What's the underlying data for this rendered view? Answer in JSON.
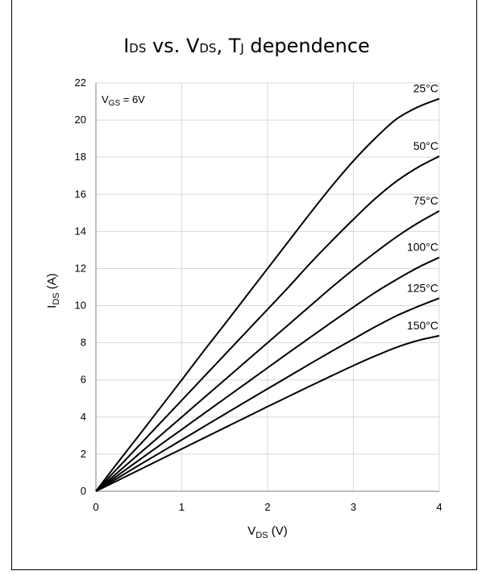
{
  "chart_data": {
    "type": "line",
    "title": {
      "i": "I",
      "sub_ds": "DS",
      "mid": " vs. V",
      "sub_ds2": "DS",
      "comma": ", T",
      "sub_j": "J",
      "rest": " dependence"
    },
    "xlabel": {
      "v": "V",
      "sub": "DS",
      "unit": " (V)"
    },
    "ylabel": {
      "i": "I",
      "sub": "DS",
      "unit": " (A)"
    },
    "condition": {
      "v": "V",
      "sub": "GS",
      "rest": " = 6V"
    },
    "xlim": [
      0,
      4
    ],
    "ylim": [
      0,
      22
    ],
    "x_ticks": [
      "0",
      "1",
      "2",
      "3",
      "4"
    ],
    "y_ticks": [
      "0",
      "2",
      "4",
      "6",
      "8",
      "10",
      "12",
      "14",
      "16",
      "18",
      "20",
      "22"
    ],
    "grid": true,
    "x": [
      0,
      0.25,
      0.5,
      0.75,
      1.0,
      1.25,
      1.5,
      1.75,
      2.0,
      2.25,
      2.5,
      2.75,
      3.0,
      3.25,
      3.5,
      3.75,
      4.0
    ],
    "series": [
      {
        "name": "25°C",
        "values": [
          0,
          1.52,
          3.0,
          4.5,
          6.0,
          7.52,
          9.0,
          10.5,
          12.0,
          13.5,
          15.0,
          16.45,
          17.8,
          19.0,
          20.05,
          20.7,
          21.15
        ]
      },
      {
        "name": "50°C",
        "values": [
          0,
          1.23,
          2.45,
          3.68,
          4.9,
          6.13,
          7.35,
          8.58,
          9.8,
          11.03,
          12.3,
          13.5,
          14.65,
          15.75,
          16.7,
          17.45,
          18.05
        ]
      },
      {
        "name": "75°C",
        "values": [
          0,
          1.0,
          2.0,
          3.0,
          4.0,
          5.0,
          6.0,
          7.0,
          8.0,
          9.0,
          10.0,
          11.0,
          11.95,
          12.85,
          13.7,
          14.45,
          15.1
        ]
      },
      {
        "name": "100°C",
        "values": [
          0,
          0.84,
          1.67,
          2.5,
          3.33,
          4.16,
          4.99,
          5.82,
          6.65,
          7.48,
          8.3,
          9.12,
          9.92,
          10.7,
          11.4,
          12.05,
          12.6
        ]
      },
      {
        "name": "125°C",
        "values": [
          0,
          0.7,
          1.4,
          2.08,
          2.77,
          3.46,
          4.15,
          4.84,
          5.52,
          6.2,
          6.88,
          7.55,
          8.2,
          8.85,
          9.45,
          9.95,
          10.4
        ]
      },
      {
        "name": "150°C",
        "values": [
          0,
          0.57,
          1.14,
          1.71,
          2.28,
          2.85,
          3.42,
          3.99,
          4.56,
          5.12,
          5.68,
          6.23,
          6.77,
          7.28,
          7.75,
          8.12,
          8.38
        ]
      }
    ]
  }
}
